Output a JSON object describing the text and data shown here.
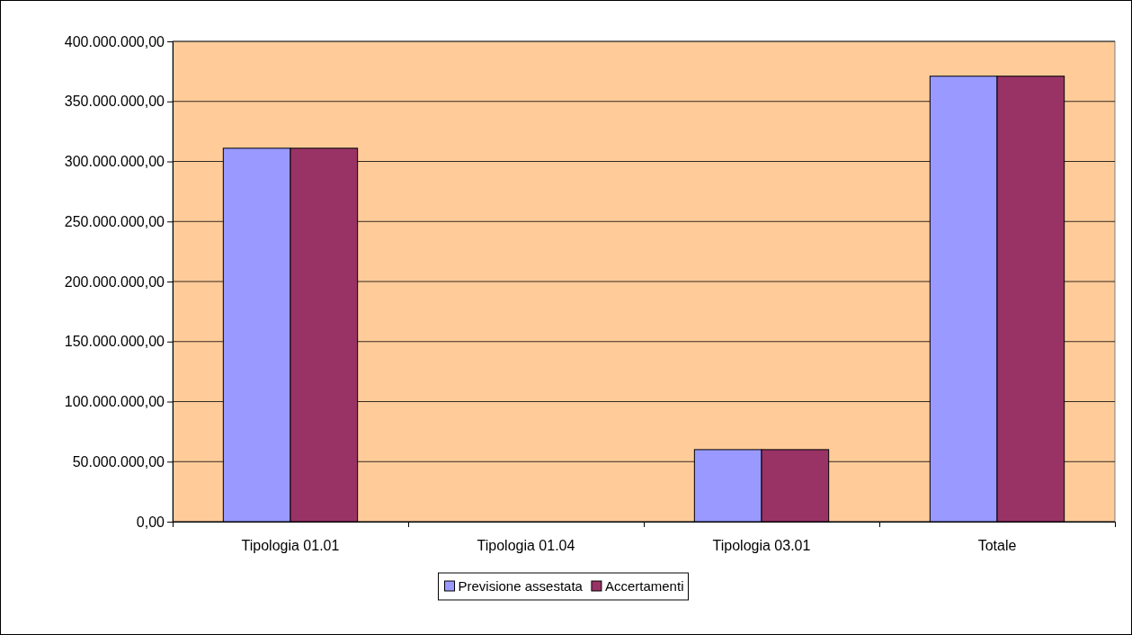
{
  "chart_data": {
    "type": "bar",
    "categories": [
      "Tipologia 01.01",
      "Tipologia 01.04",
      "Tipologia 03.01",
      "Totale"
    ],
    "series": [
      {
        "name": "Previsione assestata",
        "color": "#9999ff",
        "values": [
          311000000,
          0,
          60000000,
          371000000
        ]
      },
      {
        "name": "Accertamenti",
        "color": "#993366",
        "values": [
          311000000,
          0,
          60000000,
          371000000
        ]
      }
    ],
    "ylim": [
      0,
      400000000
    ],
    "yticks": [
      {
        "value": 0,
        "label": "0,00"
      },
      {
        "value": 50000000,
        "label": "50.000.000,00"
      },
      {
        "value": 100000000,
        "label": "100.000.000,00"
      },
      {
        "value": 150000000,
        "label": "150.000.000,00"
      },
      {
        "value": 200000000,
        "label": "200.000.000,00"
      },
      {
        "value": 250000000,
        "label": "250.000.000,00"
      },
      {
        "value": 300000000,
        "label": "300.000.000,00"
      },
      {
        "value": 350000000,
        "label": "350.000.000,00"
      },
      {
        "value": 400000000,
        "label": "400.000.000,00"
      }
    ],
    "grid": "y",
    "legend": "bottom"
  }
}
